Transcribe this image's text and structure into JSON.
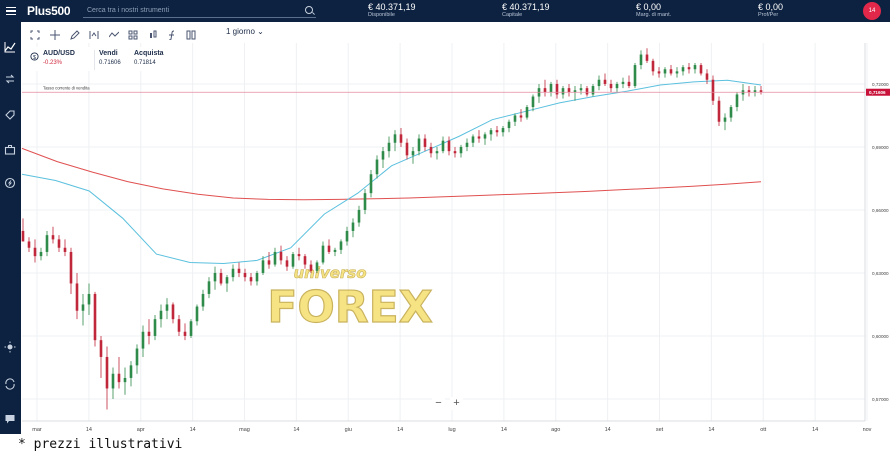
{
  "header": {
    "logo": "Plus500",
    "search_placeholder": "Cerca tra i nostri strumenti",
    "stats": [
      {
        "value": "€ 40.371,19",
        "label": "Disponibile"
      },
      {
        "value": "€ 40.371,19",
        "label": "Capitale"
      },
      {
        "value": "€ 0,00",
        "label": "Marg. di mant."
      },
      {
        "value": "€ 0,00",
        "label": "Prof/Per"
      }
    ],
    "notification_count": "14"
  },
  "toolbar": {
    "period": "1 giorno"
  },
  "instrument": {
    "symbol": "AUD/USD",
    "change": "-0.23%",
    "sell_label": "Vendi",
    "sell_price": "0.71606",
    "buy_label": "Acquista",
    "buy_price": "0.71814"
  },
  "chart_data": {
    "type": "candlestick",
    "current_line_label": "Tasso corrente di vendita",
    "current_price_tag": "0,71606",
    "y_ticks": [
      "0,72000",
      "0,69000",
      "0,66000",
      "0,63000",
      "0,60000",
      "0,57000"
    ],
    "x_ticks": [
      "mar",
      "14",
      "apr",
      "14",
      "mag",
      "14",
      "giu",
      "14",
      "lug",
      "14",
      "ago",
      "14",
      "set",
      "14",
      "ott",
      "14",
      "nov"
    ],
    "ylim": [
      0.5595,
      0.7395
    ],
    "candles": [
      [
        0.65,
        0.656,
        0.645,
        0.645
      ],
      [
        0.645,
        0.647,
        0.64,
        0.642
      ],
      [
        0.642,
        0.646,
        0.635,
        0.638
      ],
      [
        0.638,
        0.642,
        0.636,
        0.64
      ],
      [
        0.64,
        0.65,
        0.638,
        0.648
      ],
      [
        0.648,
        0.652,
        0.644,
        0.646
      ],
      [
        0.646,
        0.648,
        0.64,
        0.642
      ],
      [
        0.642,
        0.646,
        0.638,
        0.64
      ],
      [
        0.64,
        0.642,
        0.62,
        0.625
      ],
      [
        0.625,
        0.63,
        0.608,
        0.612
      ],
      [
        0.612,
        0.62,
        0.605,
        0.615
      ],
      [
        0.615,
        0.625,
        0.61,
        0.62
      ],
      [
        0.62,
        0.621,
        0.595,
        0.598
      ],
      [
        0.598,
        0.6,
        0.58,
        0.59
      ],
      [
        0.59,
        0.595,
        0.565,
        0.575
      ],
      [
        0.575,
        0.585,
        0.57,
        0.582
      ],
      [
        0.582,
        0.59,
        0.575,
        0.578
      ],
      [
        0.578,
        0.585,
        0.572,
        0.58
      ],
      [
        0.58,
        0.588,
        0.576,
        0.586
      ],
      [
        0.586,
        0.596,
        0.582,
        0.594
      ],
      [
        0.594,
        0.605,
        0.59,
        0.602
      ],
      [
        0.602,
        0.608,
        0.596,
        0.6
      ],
      [
        0.6,
        0.61,
        0.598,
        0.608
      ],
      [
        0.608,
        0.615,
        0.604,
        0.612
      ],
      [
        0.612,
        0.618,
        0.608,
        0.615
      ],
      [
        0.615,
        0.616,
        0.606,
        0.608
      ],
      [
        0.608,
        0.61,
        0.6,
        0.602
      ],
      [
        0.602,
        0.606,
        0.598,
        0.6
      ],
      [
        0.6,
        0.608,
        0.599,
        0.607
      ],
      [
        0.607,
        0.615,
        0.605,
        0.614
      ],
      [
        0.614,
        0.622,
        0.612,
        0.62
      ],
      [
        0.62,
        0.628,
        0.618,
        0.626
      ],
      [
        0.626,
        0.633,
        0.622,
        0.63
      ],
      [
        0.63,
        0.632,
        0.624,
        0.625
      ],
      [
        0.625,
        0.629,
        0.621,
        0.628
      ],
      [
        0.628,
        0.634,
        0.626,
        0.632
      ],
      [
        0.632,
        0.635,
        0.628,
        0.63
      ],
      [
        0.63,
        0.632,
        0.626,
        0.628
      ],
      [
        0.628,
        0.63,
        0.624,
        0.626
      ],
      [
        0.626,
        0.631,
        0.624,
        0.63
      ],
      [
        0.63,
        0.638,
        0.629,
        0.636
      ],
      [
        0.636,
        0.64,
        0.632,
        0.634
      ],
      [
        0.634,
        0.642,
        0.633,
        0.64
      ],
      [
        0.64,
        0.643,
        0.634,
        0.636
      ],
      [
        0.636,
        0.638,
        0.631,
        0.633
      ],
      [
        0.633,
        0.64,
        0.632,
        0.639
      ],
      [
        0.639,
        0.642,
        0.636,
        0.638
      ],
      [
        0.638,
        0.639,
        0.632,
        0.634
      ],
      [
        0.634,
        0.636,
        0.63,
        0.631
      ],
      [
        0.631,
        0.636,
        0.63,
        0.635
      ],
      [
        0.635,
        0.645,
        0.634,
        0.643
      ],
      [
        0.643,
        0.646,
        0.639,
        0.64
      ],
      [
        0.64,
        0.642,
        0.638,
        0.641
      ],
      [
        0.641,
        0.646,
        0.639,
        0.645
      ],
      [
        0.645,
        0.652,
        0.643,
        0.65
      ],
      [
        0.65,
        0.656,
        0.647,
        0.654
      ],
      [
        0.654,
        0.662,
        0.652,
        0.66
      ],
      [
        0.66,
        0.67,
        0.658,
        0.668
      ],
      [
        0.668,
        0.679,
        0.666,
        0.677
      ],
      [
        0.677,
        0.686,
        0.675,
        0.684
      ],
      [
        0.684,
        0.69,
        0.68,
        0.688
      ],
      [
        0.688,
        0.695,
        0.685,
        0.692
      ],
      [
        0.692,
        0.698,
        0.688,
        0.696
      ],
      [
        0.696,
        0.699,
        0.69,
        0.692
      ],
      [
        0.692,
        0.694,
        0.684,
        0.686
      ],
      [
        0.686,
        0.69,
        0.682,
        0.688
      ],
      [
        0.688,
        0.696,
        0.686,
        0.694
      ],
      [
        0.694,
        0.696,
        0.688,
        0.69
      ],
      [
        0.69,
        0.692,
        0.685,
        0.687
      ],
      [
        0.687,
        0.69,
        0.684,
        0.688
      ],
      [
        0.688,
        0.695,
        0.687,
        0.693
      ],
      [
        0.693,
        0.695,
        0.686,
        0.688
      ],
      [
        0.688,
        0.69,
        0.685,
        0.687
      ],
      [
        0.687,
        0.691,
        0.685,
        0.69
      ],
      [
        0.69,
        0.694,
        0.688,
        0.692
      ],
      [
        0.692,
        0.696,
        0.69,
        0.695
      ],
      [
        0.695,
        0.698,
        0.692,
        0.694
      ],
      [
        0.694,
        0.697,
        0.691,
        0.696
      ],
      [
        0.696,
        0.699,
        0.693,
        0.698
      ],
      [
        0.698,
        0.7,
        0.695,
        0.697
      ],
      [
        0.697,
        0.7,
        0.695,
        0.699
      ],
      [
        0.699,
        0.703,
        0.697,
        0.702
      ],
      [
        0.702,
        0.706,
        0.7,
        0.705
      ],
      [
        0.705,
        0.708,
        0.702,
        0.704
      ],
      [
        0.704,
        0.71,
        0.703,
        0.709
      ],
      [
        0.709,
        0.715,
        0.707,
        0.714
      ],
      [
        0.714,
        0.72,
        0.711,
        0.718
      ],
      [
        0.718,
        0.722,
        0.714,
        0.716
      ],
      [
        0.716,
        0.721,
        0.714,
        0.72
      ],
      [
        0.72,
        0.722,
        0.713,
        0.715
      ],
      [
        0.715,
        0.719,
        0.713,
        0.718
      ],
      [
        0.718,
        0.72,
        0.714,
        0.716
      ],
      [
        0.716,
        0.719,
        0.712,
        0.717
      ],
      [
        0.717,
        0.72,
        0.715,
        0.718
      ],
      [
        0.718,
        0.719,
        0.714,
        0.715
      ],
      [
        0.715,
        0.72,
        0.714,
        0.719
      ],
      [
        0.719,
        0.724,
        0.717,
        0.722
      ],
      [
        0.722,
        0.725,
        0.719,
        0.72
      ],
      [
        0.72,
        0.722,
        0.716,
        0.718
      ],
      [
        0.718,
        0.721,
        0.716,
        0.72
      ],
      [
        0.72,
        0.723,
        0.718,
        0.721
      ],
      [
        0.721,
        0.724,
        0.718,
        0.719
      ],
      [
        0.719,
        0.73,
        0.718,
        0.729
      ],
      [
        0.729,
        0.736,
        0.727,
        0.734
      ],
      [
        0.734,
        0.737,
        0.73,
        0.731
      ],
      [
        0.731,
        0.732,
        0.724,
        0.726
      ],
      [
        0.726,
        0.728,
        0.723,
        0.725
      ],
      [
        0.725,
        0.728,
        0.723,
        0.727
      ],
      [
        0.727,
        0.729,
        0.724,
        0.725
      ],
      [
        0.725,
        0.728,
        0.723,
        0.726
      ],
      [
        0.726,
        0.729,
        0.724,
        0.728
      ],
      [
        0.728,
        0.73,
        0.725,
        0.727
      ],
      [
        0.727,
        0.73,
        0.725,
        0.729
      ],
      [
        0.729,
        0.73,
        0.724,
        0.725
      ],
      [
        0.725,
        0.727,
        0.72,
        0.722
      ],
      [
        0.722,
        0.724,
        0.71,
        0.712
      ],
      [
        0.712,
        0.714,
        0.7,
        0.702
      ],
      [
        0.702,
        0.706,
        0.698,
        0.704
      ],
      [
        0.704,
        0.71,
        0.702,
        0.709
      ],
      [
        0.709,
        0.716,
        0.707,
        0.715
      ],
      [
        0.715,
        0.72,
        0.712,
        0.717
      ],
      [
        0.717,
        0.719,
        0.714,
        0.716
      ],
      [
        0.716,
        0.719,
        0.714,
        0.717
      ],
      [
        0.717,
        0.719,
        0.715,
        0.7161
      ]
    ],
    "ma_long_y": [
      0.6893,
      0.683,
      0.678,
      0.6735,
      0.67,
      0.6675,
      0.6657,
      0.665,
      0.6649,
      0.665,
      0.6653,
      0.6657,
      0.6663,
      0.6669,
      0.6675,
      0.6681,
      0.6688,
      0.6696,
      0.6704,
      0.6712,
      0.6722,
      0.6734
    ],
    "ma_short_y": [
      0.677,
      0.674,
      0.669,
      0.656,
      0.639,
      0.635,
      0.6345,
      0.636,
      0.642,
      0.658,
      0.668,
      0.681,
      0.688,
      0.695,
      0.703,
      0.707,
      0.711,
      0.714,
      0.7165,
      0.7195,
      0.721,
      0.7218,
      0.7195
    ]
  },
  "watermark": {
    "line1": "universo",
    "line2": "FOREX"
  },
  "zoom": {
    "minus": "−",
    "plus": "+"
  },
  "footnote": "* prezzi illustrativi",
  "colors": {
    "navy": "#0d2240",
    "up": "#2e8b4a",
    "down": "#c0273a",
    "ma_short": "#5bc0de",
    "ma_long": "#e05050",
    "price_line": "#e58aa0"
  }
}
